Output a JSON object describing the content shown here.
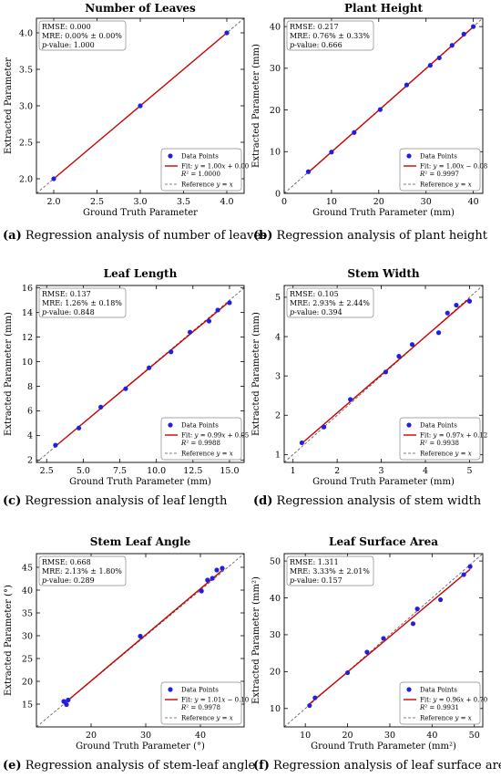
{
  "chart_data": [
    {
      "type": "scatter",
      "title": "Number of Leaves",
      "xlabel": "Ground Truth Parameter",
      "ylabel": "Extracted Parameter",
      "xlim": [
        1.8,
        4.2
      ],
      "ylim": [
        1.8,
        4.2
      ],
      "xticks": [
        "2.0",
        "2.5",
        "3.0",
        "3.5",
        "4.0"
      ],
      "yticks": [
        "2.0",
        "2.5",
        "3.0",
        "3.5",
        "4.0"
      ],
      "stats": [
        "RMSE: 0.000",
        "MRE: 0.00% ± 0.00%",
        "p-value: 1.000"
      ],
      "legend_position": "bottom-right",
      "legend": [
        "Data Points",
        "Fit: y = 1.00x + 0.00",
        "R² = 1.0000",
        "Reference y = x"
      ],
      "fit": {
        "slope": 1.0,
        "intercept": 0.0
      },
      "x": [
        2,
        3,
        4
      ],
      "y": [
        2,
        3,
        4
      ],
      "caption_letter": "(a)",
      "caption_text": " Regression analysis of number of leaves",
      "colors": {
        "points": "#2020e0",
        "fit": "#cc0000",
        "reference": "#555555"
      }
    },
    {
      "type": "scatter",
      "title": "Plant Height",
      "xlabel": "Ground Truth Parameter (mm)",
      "ylabel": "Extracted Parameter (mm)",
      "xlim": [
        0,
        42
      ],
      "ylim": [
        0,
        42
      ],
      "xticks": [
        "0",
        "10",
        "20",
        "30",
        "40"
      ],
      "yticks": [
        "0",
        "10",
        "20",
        "30",
        "40"
      ],
      "stats": [
        "RMSE: 0.217",
        "MRE: 0.76% ± 0.33%",
        "p-value: 0.666"
      ],
      "legend_position": "bottom-right",
      "legend": [
        "Data Points",
        "Fit: y = 1.00x − 0.08",
        "R² = 0.9997",
        "Reference y = x"
      ],
      "fit": {
        "slope": 1.0,
        "intercept": -0.08
      },
      "x": [
        5.1,
        10.0,
        14.8,
        20.3,
        25.9,
        30.9,
        32.8,
        35.5,
        38.0,
        40.0
      ],
      "y": [
        5.2,
        9.9,
        14.6,
        20.1,
        26.0,
        30.7,
        32.5,
        35.5,
        38.2,
        40.0
      ],
      "caption_letter": "(b)",
      "caption_text": " Regression analysis of plant height",
      "colors": {
        "points": "#2020e0",
        "fit": "#cc0000",
        "reference": "#555555"
      }
    },
    {
      "type": "scatter",
      "title": "Leaf Length",
      "xlabel": "Ground Truth Parameter (mm)",
      "ylabel": "Extracted Parameter (mm)",
      "xlim": [
        1.8,
        16.0
      ],
      "ylim": [
        1.8,
        16.2
      ],
      "xticks": [
        "2.5",
        "5.0",
        "7.5",
        "10.0",
        "12.5",
        "15.0"
      ],
      "yticks": [
        "2",
        "4",
        "6",
        "8",
        "10",
        "12",
        "14",
        "16"
      ],
      "stats": [
        "RMSE: 0.137",
        "MRE: 1.26% ± 0.18%",
        "p-value: 0.848"
      ],
      "legend_position": "bottom-right",
      "legend": [
        "Data Points",
        "Fit: y = 0.99x + 0.05",
        "R² = 0.9988",
        "Reference y = x"
      ],
      "fit": {
        "slope": 0.99,
        "intercept": 0.05
      },
      "x": [
        3.1,
        4.7,
        6.2,
        7.9,
        9.5,
        11.0,
        12.3,
        13.6,
        14.2,
        15.0
      ],
      "y": [
        3.2,
        4.6,
        6.3,
        7.8,
        9.5,
        10.8,
        12.4,
        13.3,
        14.2,
        14.8
      ],
      "caption_letter": "(c)",
      "caption_text": " Regression analysis of leaf length",
      "colors": {
        "points": "#2020e0",
        "fit": "#cc0000",
        "reference": "#555555"
      }
    },
    {
      "type": "scatter",
      "title": "Stem Width",
      "xlabel": "Ground Truth Parameter (mm)",
      "ylabel": "Extracted Parameter (mm)",
      "xlim": [
        0.8,
        5.3
      ],
      "ylim": [
        0.8,
        5.3
      ],
      "xticks": [
        "1",
        "2",
        "3",
        "4",
        "5"
      ],
      "yticks": [
        "1",
        "2",
        "3",
        "4",
        "5"
      ],
      "stats": [
        "RMSE: 0.105",
        "MRE: 2.93% ± 2.44%",
        "p-value: 0.394"
      ],
      "legend_position": "bottom-right",
      "legend": [
        "Data Points",
        "Fit: y = 0.97x + 0.12",
        "R² = 0.9938",
        "Reference y = x"
      ],
      "fit": {
        "slope": 0.97,
        "intercept": 0.12
      },
      "x": [
        1.2,
        1.7,
        2.3,
        3.1,
        3.4,
        3.7,
        4.3,
        4.5,
        4.7,
        5.0
      ],
      "y": [
        1.3,
        1.7,
        2.4,
        3.1,
        3.5,
        3.8,
        4.1,
        4.6,
        4.8,
        4.9
      ],
      "caption_letter": "(d)",
      "caption_text": " Regression analysis of stem width",
      "colors": {
        "points": "#2020e0",
        "fit": "#cc0000",
        "reference": "#555555"
      }
    },
    {
      "type": "scatter",
      "title": "Stem Leaf Angle",
      "xlabel": "Ground Truth Parameter (°)",
      "ylabel": "Extracted Parameter (°)",
      "xlim": [
        10,
        48
      ],
      "ylim": [
        10,
        48
      ],
      "xticks": [
        "20",
        "30",
        "40"
      ],
      "yticks": [
        "15",
        "20",
        "25",
        "30",
        "35",
        "40",
        "45"
      ],
      "stats": [
        "RMSE: 0.668",
        "MRE: 2.13% ± 1.80%",
        "p-value: 0.289"
      ],
      "legend_position": "bottom-right",
      "legend": [
        "Data Points",
        "Fit: y = 1.01x − 0.10",
        "R² = 0.9978",
        "Reference y = x"
      ],
      "fit": {
        "slope": 1.01,
        "intercept": -0.1
      },
      "x": [
        15.0,
        15.5,
        15.8,
        29.0,
        40.2,
        41.3,
        42.2,
        43.0,
        44.0
      ],
      "y": [
        15.6,
        14.9,
        15.9,
        29.9,
        39.8,
        42.2,
        42.6,
        44.4,
        44.8
      ],
      "caption_letter": "(e)",
      "caption_text": " Regression analysis of stem-leaf angle",
      "colors": {
        "points": "#2020e0",
        "fit": "#cc0000",
        "reference": "#555555"
      }
    },
    {
      "type": "scatter",
      "title": "Leaf Surface Area",
      "xlabel": "Ground Truth Parameter (mm²)",
      "ylabel": "Extracted Parameter (mm²)",
      "xlim": [
        5,
        52
      ],
      "ylim": [
        5,
        52
      ],
      "xticks": [
        "10",
        "20",
        "30",
        "40",
        "50"
      ],
      "yticks": [
        "10",
        "20",
        "30",
        "40",
        "50"
      ],
      "stats": [
        "RMSE: 1.311",
        "MRE: 3.33% ± 2.01%",
        "p-value: 0.157"
      ],
      "legend_position": "bottom-right",
      "legend": [
        "Data Points",
        "Fit: y = 0.96x + 0.70",
        "R² = 0.9931",
        "Reference y = x"
      ],
      "fit": {
        "slope": 0.96,
        "intercept": 0.7
      },
      "x": [
        11.0,
        12.3,
        20.0,
        24.6,
        28.5,
        35.5,
        36.5,
        42.0,
        47.5,
        49.0
      ],
      "y": [
        10.8,
        12.9,
        19.7,
        25.3,
        29.0,
        33.0,
        37.0,
        39.5,
        46.3,
        48.5
      ],
      "caption_letter": "(f)",
      "caption_text": " Regression analysis of leaf surface area",
      "colors": {
        "points": "#2020e0",
        "fit": "#cc0000",
        "reference": "#555555"
      }
    }
  ]
}
